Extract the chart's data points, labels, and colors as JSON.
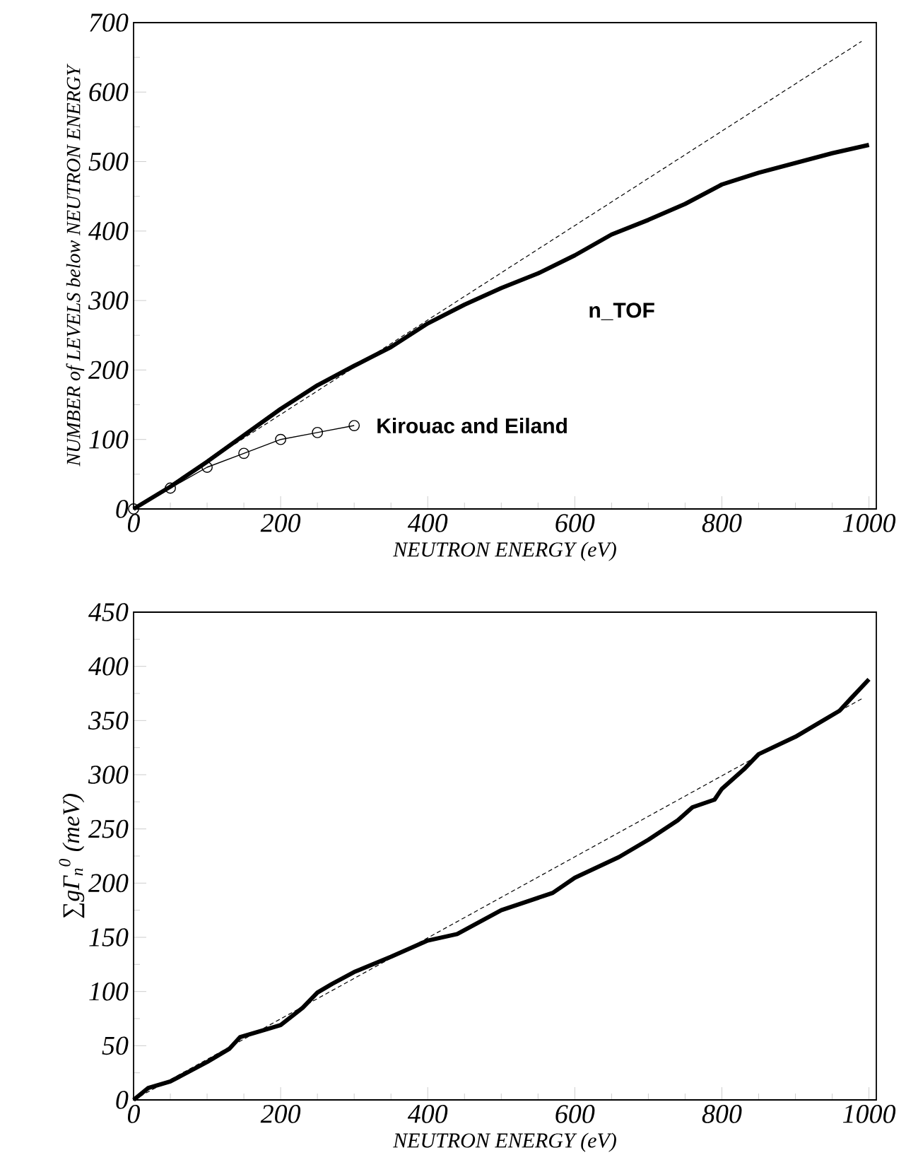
{
  "chart_data": [
    {
      "type": "line",
      "xlabel": "NEUTRON ENERGY (eV)",
      "ylabel": "NUMBER of LEVELS *below* NEUTRON ENERGY",
      "xlim": [
        0,
        1010
      ],
      "xticks": [
        0,
        200,
        400,
        600,
        800,
        1000
      ],
      "ylim": [
        0,
        700
      ],
      "yticks": [
        0,
        100,
        200,
        300,
        400,
        500,
        600,
        700
      ],
      "series": [
        {
          "name": "n_TOF",
          "color": "#000000",
          "line_style": "solid",
          "x": [
            0,
            50,
            100,
            150,
            200,
            250,
            300,
            350,
            400,
            450,
            500,
            550,
            600,
            650,
            700,
            750,
            800,
            850,
            900,
            950,
            1000
          ],
          "values": [
            0,
            32,
            68,
            106,
            144,
            178,
            206,
            233,
            267,
            294,
            318,
            339,
            365,
            395,
            416,
            439,
            467,
            484,
            498,
            512,
            524
          ]
        },
        {
          "name": "Kirouac and Eiland",
          "color": "#000000",
          "line_style": "solid",
          "marker": "circle",
          "x": [
            0,
            50,
            100,
            150,
            200,
            250,
            300
          ],
          "values": [
            0,
            30,
            60,
            80,
            100,
            110,
            120
          ]
        },
        {
          "color": "#000000",
          "line_style": "dashed",
          "x": [
            0,
            990
          ],
          "values": [
            0,
            673
          ]
        }
      ]
    },
    {
      "type": "line",
      "xlabel": "NEUTRON ENERGY (eV)",
      "ylabel": "∑gΓ$_{n}$$^{0}$ (meV)",
      "xlim": [
        0,
        1010
      ],
      "xticks": [
        0,
        200,
        400,
        600,
        800,
        1000
      ],
      "ylim": [
        0,
        450
      ],
      "yticks": [
        0,
        50,
        100,
        150,
        200,
        250,
        300,
        350,
        400,
        450
      ],
      "series": [
        {
          "color": "#000000",
          "line_style": "solid",
          "x": [
            0,
            20,
            50,
            100,
            130,
            145,
            180,
            200,
            230,
            250,
            270,
            300,
            350,
            400,
            440,
            500,
            570,
            600,
            660,
            700,
            740,
            760,
            790,
            800,
            830,
            850,
            900,
            960,
            975,
            1000
          ],
          "values": [
            0,
            11,
            17,
            35,
            47,
            58,
            65,
            69,
            85,
            99,
            107,
            118,
            132,
            147,
            153,
            175,
            191,
            205,
            224,
            240,
            258,
            270,
            277,
            287,
            305,
            319,
            335,
            359,
            370,
            388
          ]
        },
        {
          "color": "#000000",
          "line_style": "dashed",
          "x": [
            0,
            990
          ],
          "values": [
            0,
            370
          ]
        }
      ]
    }
  ]
}
